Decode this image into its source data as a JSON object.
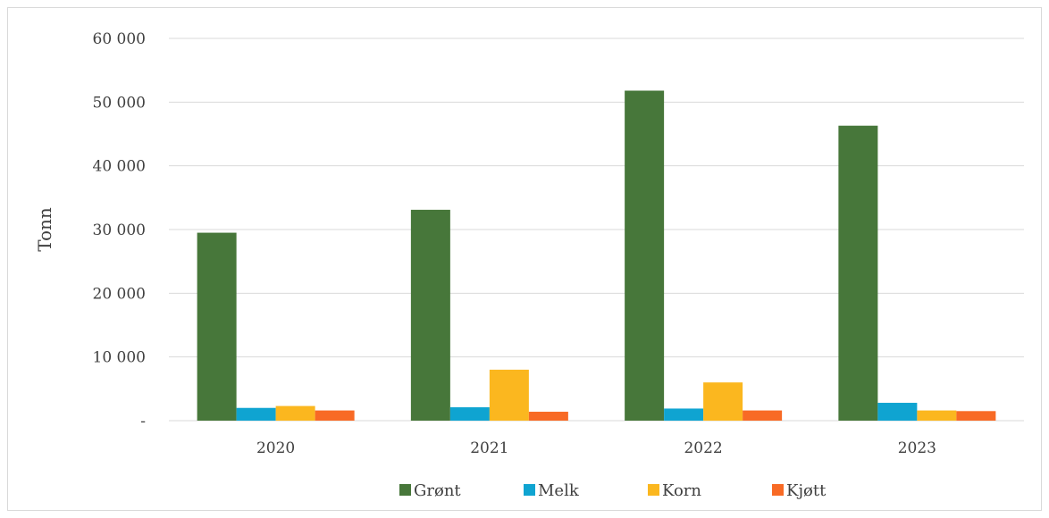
{
  "chart_data": {
    "type": "bar",
    "title": "",
    "xlabel": "",
    "ylabel": "Tonn",
    "categories": [
      "2020",
      "2021",
      "2022",
      "2023"
    ],
    "ylim": [
      0,
      60000
    ],
    "yticks": [
      0,
      10000,
      20000,
      30000,
      40000,
      50000,
      60000
    ],
    "ytick_labels": [
      "-",
      "10 000",
      "20 000",
      "30 000",
      "40 000",
      "50 000",
      "60 000"
    ],
    "grid": true,
    "legend_position": "bottom",
    "series": [
      {
        "name": "Grønt",
        "color": "#47773a",
        "values": [
          29500,
          33100,
          51800,
          46300
        ]
      },
      {
        "name": "Melk",
        "color": "#0fa4d1",
        "values": [
          2000,
          2100,
          1900,
          2800
        ]
      },
      {
        "name": "Korn",
        "color": "#fbb71f",
        "values": [
          2300,
          8000,
          6000,
          1600
        ]
      },
      {
        "name": "Kjøtt",
        "color": "#f86a25",
        "values": [
          1600,
          1400,
          1600,
          1500
        ]
      }
    ]
  }
}
